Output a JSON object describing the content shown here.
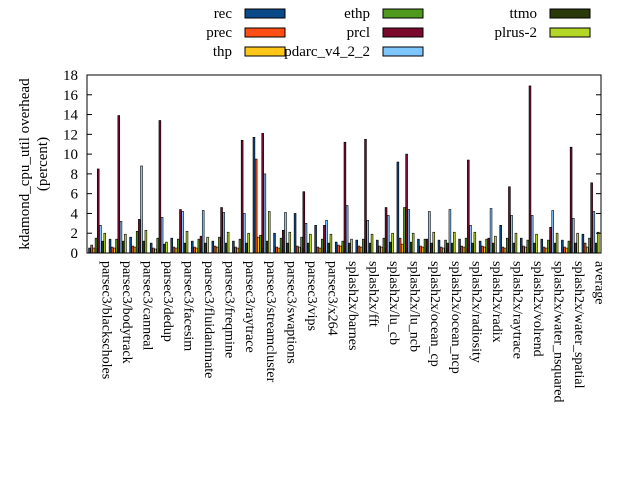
{
  "chart_data": {
    "type": "bar",
    "title": "",
    "xlabel": "",
    "ylabel": "kdamond_cpu_util overhead (percent)",
    "ylabel_lines": [
      "kdamond_cpu_util overhead",
      "(percent)"
    ],
    "ylim": [
      0,
      18
    ],
    "yticks": [
      0,
      2,
      4,
      6,
      8,
      10,
      12,
      14,
      16,
      18
    ],
    "legend_position": "top",
    "grid": false,
    "categories": [
      "parsec3/blackscholes",
      "parsec3/bodytrack",
      "parsec3/canneal",
      "parsec3/dedup",
      "parsec3/facesim",
      "parsec3/fluidanimate",
      "parsec3/freqmine",
      "parsec3/raytrace",
      "parsec3/streamcluster",
      "parsec3/swaptions",
      "parsec3/vips",
      "parsec3/x264",
      "splash2x/barnes",
      "splash2x/fft",
      "splash2x/lu_cb",
      "splash2x/lu_ncb",
      "splash2x/ocean_cp",
      "splash2x/ocean_ncp",
      "splash2x/radiosity",
      "splash2x/radix",
      "splash2x/raytrace",
      "splash2x/volrend",
      "splash2x/water_nsquared",
      "splash2x/water_spatial",
      "average"
    ],
    "series": [
      {
        "name": "rec",
        "color": "#0b4a88",
        "values": [
          0.5,
          1.4,
          1.6,
          1.0,
          1.5,
          1.2,
          1.2,
          1.2,
          11.7,
          2.0,
          4.0,
          2.8,
          1.1,
          1.3,
          1.3,
          9.2,
          1.4,
          1.3,
          1.4,
          1.2,
          2.8,
          1.5,
          1.4,
          1.3,
          1.9
        ]
      },
      {
        "name": "prec",
        "color": "#ff4e14",
        "values": [
          0.8,
          0.6,
          0.7,
          0.5,
          0.6,
          0.6,
          0.7,
          0.6,
          9.5,
          0.6,
          0.7,
          0.6,
          0.8,
          0.7,
          0.7,
          1.5,
          0.7,
          0.6,
          0.7,
          0.7,
          0.6,
          0.7,
          0.6,
          0.6,
          1.0
        ]
      },
      {
        "name": "thp",
        "color": "#ffc61a",
        "values": [
          0.5,
          0.5,
          0.6,
          0.4,
          0.5,
          0.5,
          0.6,
          0.5,
          1.6,
          0.5,
          0.6,
          0.5,
          0.7,
          0.6,
          0.6,
          0.9,
          0.6,
          0.5,
          0.6,
          0.6,
          0.5,
          0.6,
          0.5,
          0.5,
          0.6
        ]
      },
      {
        "name": "ethp",
        "color": "#4f9a1d",
        "values": [
          1.5,
          1.4,
          2.2,
          1.5,
          1.4,
          1.4,
          1.6,
          1.4,
          1.8,
          1.5,
          1.6,
          1.4,
          1.2,
          1.4,
          1.5,
          4.6,
          1.4,
          1.3,
          1.5,
          1.4,
          1.5,
          1.3,
          1.3,
          1.2,
          1.5
        ]
      },
      {
        "name": "prcl",
        "color": "#7a0a2d",
        "values": [
          8.5,
          13.9,
          3.4,
          13.4,
          4.4,
          1.7,
          4.6,
          11.4,
          12.1,
          2.3,
          6.2,
          2.8,
          11.2,
          11.5,
          4.6,
          10.0,
          1.4,
          1.0,
          9.4,
          1.5,
          6.7,
          16.9,
          2.6,
          10.7,
          7.1
        ]
      },
      {
        "name": "pdarc_v4_2_2",
        "color": "#7ec6ff",
        "values": [
          2.8,
          3.2,
          8.8,
          3.6,
          4.2,
          4.3,
          4.1,
          4.0,
          8.0,
          4.1,
          3.0,
          3.3,
          4.8,
          3.3,
          3.8,
          4.4,
          4.2,
          4.4,
          2.8,
          4.5,
          3.8,
          3.8,
          4.3,
          3.5,
          4.2
        ]
      },
      {
        "name": "ttmo",
        "color": "#2a3a0b",
        "values": [
          1.2,
          1.2,
          1.2,
          0.9,
          1.0,
          1.0,
          1.0,
          1.0,
          1.2,
          1.0,
          1.0,
          1.0,
          1.0,
          1.0,
          1.1,
          1.1,
          1.0,
          1.0,
          1.0,
          1.0,
          1.0,
          1.0,
          1.0,
          1.0,
          1.0
        ]
      },
      {
        "name": "plrus-2",
        "color": "#b4d626",
        "values": [
          2.0,
          1.9,
          2.3,
          1.1,
          2.2,
          1.6,
          2.1,
          2.0,
          4.2,
          2.1,
          1.9,
          1.9,
          1.4,
          1.9,
          2.0,
          2.0,
          2.1,
          2.1,
          2.1,
          1.7,
          2.0,
          1.9,
          2.0,
          2.0,
          2.1
        ]
      }
    ]
  }
}
